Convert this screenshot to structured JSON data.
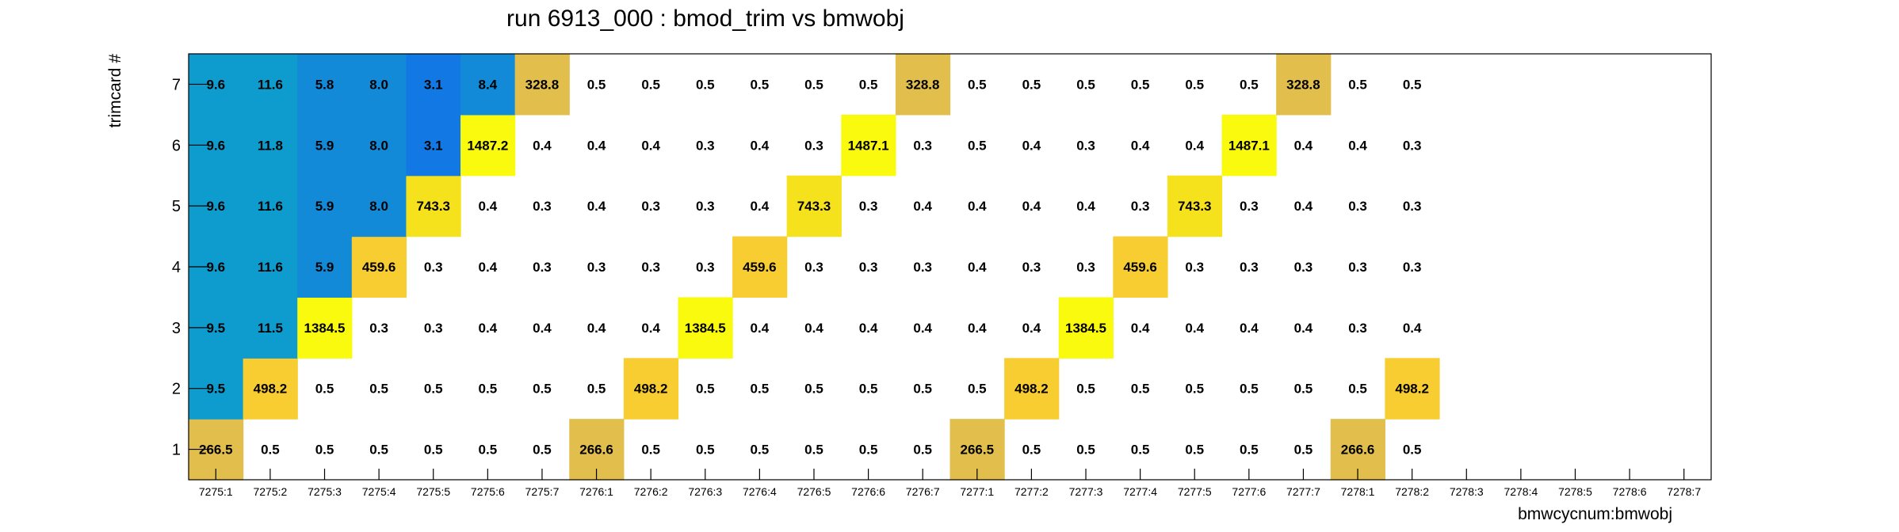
{
  "chart_data": {
    "type": "heatmap",
    "title": "run 6913_000 : bmod_trim vs bmwobj",
    "xlabel": "bmwcycnum:bmwobj",
    "ylabel": "trimcard #",
    "x_categories": [
      "7275:1",
      "7275:2",
      "7275:3",
      "7275:4",
      "7275:5",
      "7275:6",
      "7275:7",
      "7276:1",
      "7276:2",
      "7276:3",
      "7276:4",
      "7276:5",
      "7276:6",
      "7276:7",
      "7277:1",
      "7277:2",
      "7277:3",
      "7277:4",
      "7277:5",
      "7277:6",
      "7277:7",
      "7278:1",
      "7278:2",
      "7278:3",
      "7278:4",
      "7278:5",
      "7278:6",
      "7278:7"
    ],
    "y_categories": [
      "1",
      "2",
      "3",
      "4",
      "5",
      "6",
      "7"
    ],
    "values": {
      "1": [
        266.5,
        0.5,
        0.5,
        0.5,
        0.5,
        0.5,
        0.5,
        266.6,
        0.5,
        0.5,
        0.5,
        0.5,
        0.5,
        0.5,
        266.5,
        0.5,
        0.5,
        0.5,
        0.5,
        0.5,
        0.5,
        266.6,
        0.5,
        null,
        null,
        null,
        null,
        null
      ],
      "2": [
        9.5,
        498.2,
        0.5,
        0.5,
        0.5,
        0.5,
        0.5,
        0.5,
        498.2,
        0.5,
        0.5,
        0.5,
        0.5,
        0.5,
        0.5,
        498.2,
        0.5,
        0.5,
        0.5,
        0.5,
        0.5,
        0.5,
        498.2,
        null,
        null,
        null,
        null,
        null
      ],
      "3": [
        9.5,
        11.5,
        1384.5,
        0.3,
        0.3,
        0.4,
        0.4,
        0.4,
        0.4,
        1384.5,
        0.4,
        0.4,
        0.4,
        0.4,
        0.4,
        0.4,
        1384.5,
        0.4,
        0.4,
        0.4,
        0.4,
        0.3,
        0.4,
        null,
        null,
        null,
        null,
        null
      ],
      "4": [
        9.6,
        11.6,
        5.9,
        459.6,
        0.3,
        0.4,
        0.3,
        0.3,
        0.3,
        0.3,
        459.6,
        0.3,
        0.3,
        0.3,
        0.4,
        0.3,
        0.3,
        459.6,
        0.3,
        0.3,
        0.3,
        0.3,
        0.3,
        null,
        null,
        null,
        null,
        null
      ],
      "5": [
        9.6,
        11.6,
        5.9,
        8.0,
        743.3,
        0.4,
        0.3,
        0.4,
        0.3,
        0.3,
        0.4,
        743.3,
        0.3,
        0.4,
        0.4,
        0.4,
        0.4,
        0.3,
        743.3,
        0.3,
        0.4,
        0.3,
        0.3,
        null,
        null,
        null,
        null,
        null
      ],
      "6": [
        9.6,
        11.8,
        5.9,
        8.0,
        3.1,
        1487.2,
        0.4,
        0.4,
        0.4,
        0.3,
        0.4,
        0.3,
        1487.1,
        0.3,
        0.5,
        0.4,
        0.3,
        0.4,
        0.4,
        1487.1,
        0.4,
        0.4,
        0.3,
        null,
        null,
        null,
        null,
        null
      ],
      "7": [
        9.6,
        11.6,
        5.8,
        8.0,
        3.1,
        8.4,
        328.8,
        0.5,
        0.5,
        0.5,
        0.5,
        0.5,
        0.5,
        328.8,
        0.5,
        0.5,
        0.5,
        0.5,
        0.5,
        0.5,
        328.8,
        0.5,
        0.5,
        null,
        null,
        null,
        null,
        null
      ]
    },
    "colors": {
      "very_high": "#fafa0f",
      "high_large": "#f6e21c",
      "high": "#f8cd32",
      "medium_high": "#f2c338",
      "medium": "#e2bf4d",
      "low_a": "#1278e4",
      "low_b": "#128ad8",
      "low_c": "#0e9ccf",
      "background": "#ffffff"
    }
  }
}
